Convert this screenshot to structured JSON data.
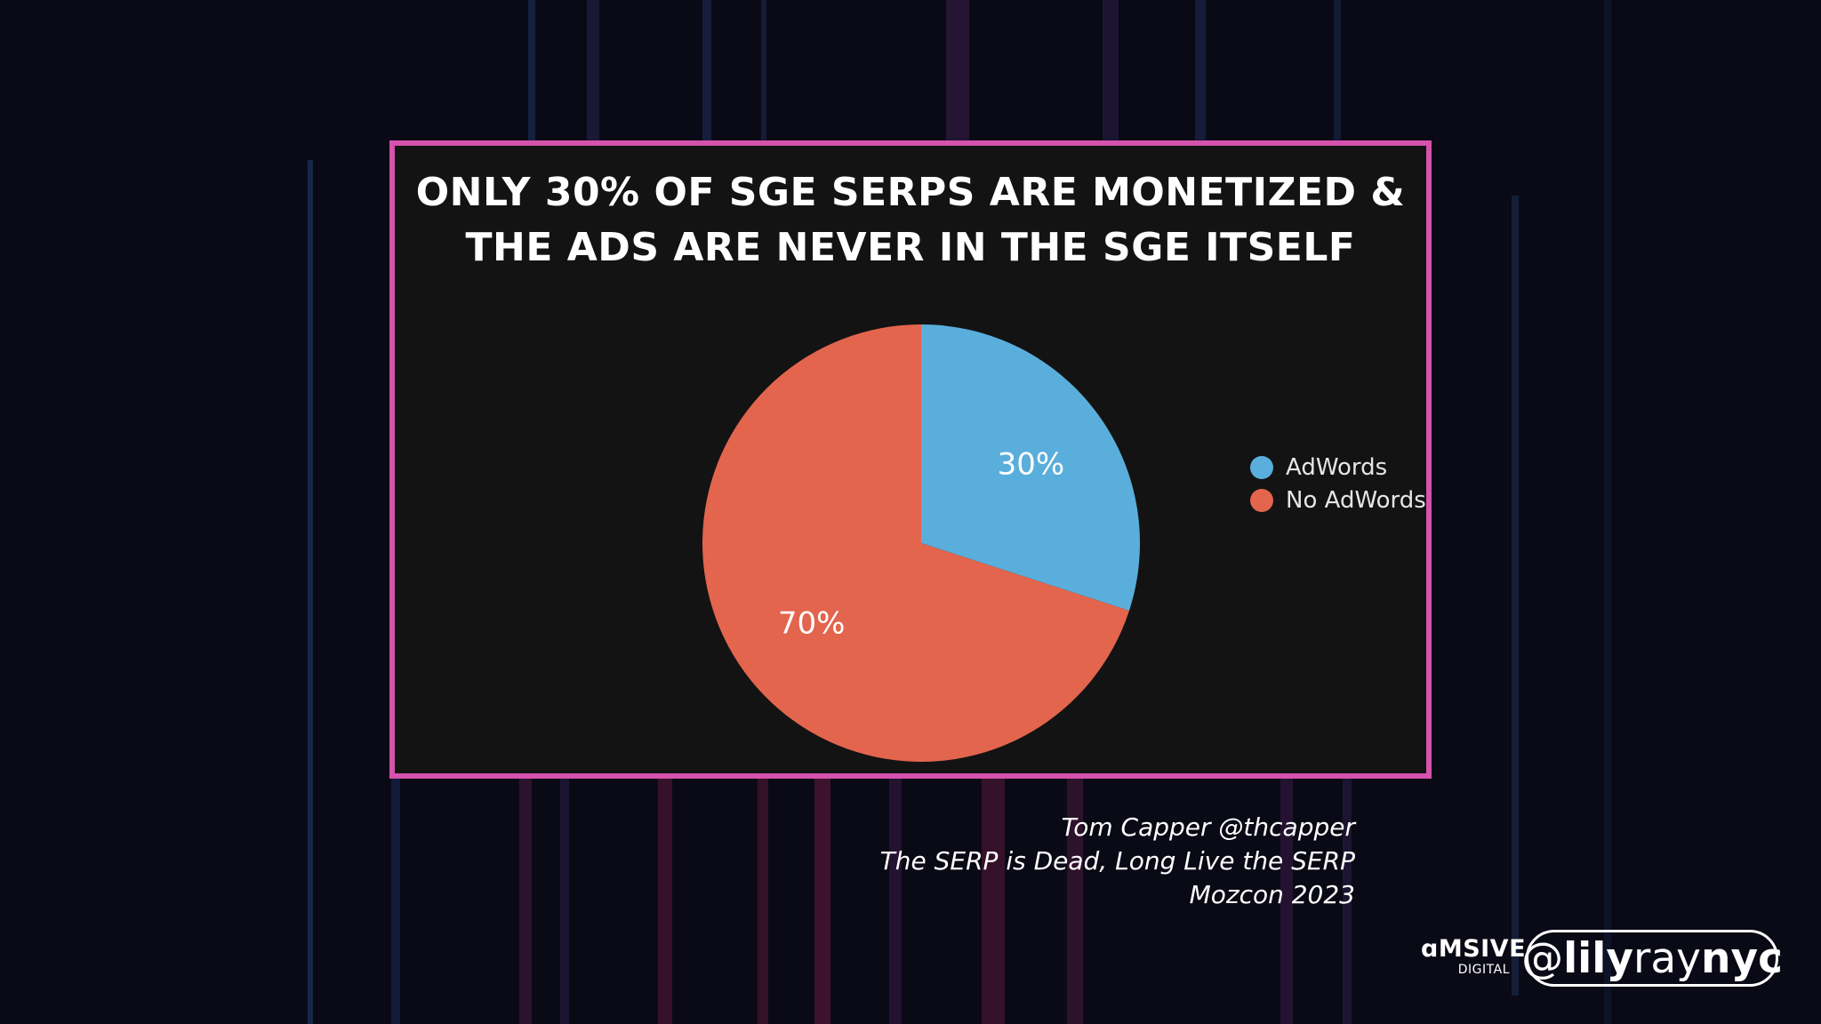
{
  "chart_data": {
    "type": "pie",
    "title_lines": [
      "ONLY 30% OF SGE SERPS ARE MONETIZED &",
      "THE ADS ARE NEVER IN THE SGE ITSELF"
    ],
    "categories": [
      "AdWords",
      "No AdWords"
    ],
    "values": [
      30,
      70
    ],
    "data_labels": [
      "30%",
      "70%"
    ],
    "colors": [
      "#5aaedb",
      "#e3654d"
    ],
    "legend_position": "right"
  },
  "credits": {
    "line1": "Tom Capper @thcapper",
    "line2": "The SERP is Dead, Long Live the SERP",
    "line3": "Mozcon 2023"
  },
  "brand": {
    "name": "ɑMSIVE",
    "sub": "DIGITAL"
  },
  "handle": {
    "at": "@",
    "part1": "lily",
    "part2": "ray",
    "part3": "nyc"
  },
  "colors": {
    "panel_border": "#d552ad",
    "panel_bg": "#131313",
    "page_bg": "#0a0a16"
  }
}
